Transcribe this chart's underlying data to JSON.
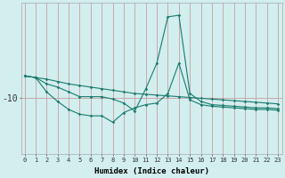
{
  "xlabel": "Humidex (Indice chaleur)",
  "background_color": "#d2eeee",
  "line_color": "#1a7a6e",
  "vline_color": "#c8a0a0",
  "hline_color": "#c8a0a0",
  "x_data": [
    0,
    1,
    2,
    3,
    4,
    5,
    6,
    7,
    8,
    9,
    10,
    11,
    12,
    13,
    14,
    15,
    16,
    17,
    18,
    19,
    20,
    21,
    22,
    23
  ],
  "line1": [
    -8.6,
    -8.7,
    -8.8,
    -8.95,
    -9.1,
    -9.2,
    -9.3,
    -9.4,
    -9.5,
    -9.6,
    -9.7,
    -9.75,
    -9.8,
    -9.85,
    -9.9,
    -9.95,
    -10.0,
    -10.05,
    -10.1,
    -10.15,
    -10.2,
    -10.25,
    -10.3,
    -10.35
  ],
  "line2": [
    -8.6,
    -8.7,
    -9.6,
    -10.2,
    -10.7,
    -11.0,
    -11.1,
    -11.1,
    -11.5,
    -10.9,
    -10.6,
    -10.4,
    -10.3,
    -9.7,
    -7.8,
    -10.1,
    -10.4,
    -10.5,
    -10.55,
    -10.6,
    -10.65,
    -10.7,
    -10.7,
    -10.75
  ],
  "line3": [
    -8.6,
    -8.7,
    -9.1,
    -9.3,
    -9.6,
    -9.9,
    -9.9,
    -9.9,
    -10.05,
    -10.3,
    -10.8,
    -9.4,
    -7.8,
    -4.9,
    -4.8,
    -9.7,
    -10.2,
    -10.4,
    -10.45,
    -10.5,
    -10.55,
    -10.6,
    -10.6,
    -10.65
  ],
  "ytick_value": -10,
  "ytick_label": "-10",
  "x_min": 0,
  "x_max": 23,
  "y_min": -13.5,
  "y_max": -4.0
}
